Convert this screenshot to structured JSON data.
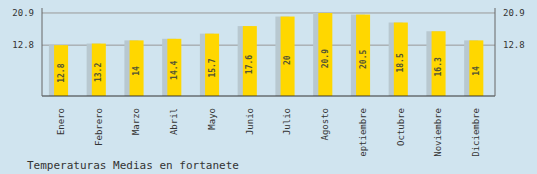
{
  "chart_data": {
    "type": "bar",
    "title": "Temperaturas Medias en fortanete",
    "categories": [
      "Enero",
      "Febrero",
      "Marzo",
      "Abril",
      "Mayo",
      "Junio",
      "Julio",
      "Agosto",
      "Septiembre",
      "Octubre",
      "Noviembre",
      "Diciembre"
    ],
    "values": [
      12.8,
      13.2,
      14.0,
      14.4,
      15.7,
      17.6,
      20.0,
      20.9,
      20.5,
      18.5,
      16.3,
      14.0
    ],
    "color": "#FFD700",
    "ylim": [
      0,
      22.154
    ],
    "yticks": [
      12.8,
      20.9
    ],
    "y2lim": [
      0,
      22.154
    ],
    "y2ticks": [
      12.8,
      20.9
    ],
    "grid": true,
    "data_labels": true
  }
}
